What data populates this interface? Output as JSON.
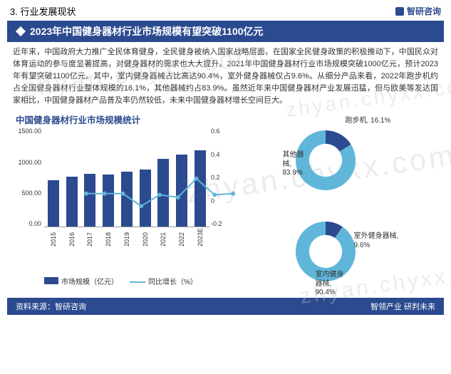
{
  "section_number": "3. 行业发展现状",
  "brand": "智研咨询",
  "title": "2023年中国健身器材行业市场规模有望突破1100亿元",
  "paragraph": "近年来，中国政府大力推广全民体育健身，全民健身被纳入国家战略层面，在国家全民健身政策的积极推动下，中国民众对体育运动的参与度显著提高，对健身器材的需求也大大提升。2021年中国健身器材行业市场规模突破1000亿元，预计2023年有望突破1100亿元。其中，室内健身器械占比高达90.4%，室外健身器械仅占9.6%。从细分产品来看，2022年跑步机约占全国健身器材行业整体规模的16.1%，其他器械约占83.9%。虽然近年来中国健身器材产业发展迅猛，但与欧美等发达国家相比，中国健身器材产品普及率仍然较低，未来中国健身器材增长空间巨大。",
  "bar_chart": {
    "type": "bar_line_combo",
    "title": "中国健身器材行业市场规模统计",
    "categories": [
      "2015",
      "2016",
      "2017",
      "2018",
      "2019",
      "2020",
      "2021",
      "2022",
      "2023E"
    ],
    "bar_values": [
      700,
      750,
      800,
      780,
      830,
      860,
      1020,
      1080,
      1150
    ],
    "bar_color": "#2b4a8f",
    "line_values": [
      0.07,
      0.07,
      0.07,
      -0.03,
      0.06,
      0.04,
      0.19,
      0.06,
      0.07
    ],
    "line_color": "#5fb6d9",
    "y_left_ticks": [
      "1500.00",
      "1000.00",
      "500.00",
      "0.00"
    ],
    "y_left_max": 1500,
    "y_right_ticks": [
      "0.6",
      "0.4",
      "0.2",
      "0",
      "-0.2"
    ],
    "y_right_min": -0.2,
    "y_right_max": 0.6,
    "legend_bar": "市场规模（亿元）",
    "legend_line": "同比增长（%）",
    "background_color": "#ffffff"
  },
  "donut1": {
    "type": "donut",
    "slices": [
      {
        "label": "跑步机",
        "value": 16.1,
        "color": "#2b4a8f",
        "label_text": "跑步机, 16.1%"
      },
      {
        "label": "其他器械",
        "value": 83.9,
        "color": "#5fb6d9",
        "label_text": "其他器\n械,\n83.9%"
      }
    ],
    "inner_radius_pct": 55
  },
  "donut2": {
    "type": "donut",
    "slices": [
      {
        "label": "室外健身器械",
        "value": 9.6,
        "color": "#2b4a8f",
        "label_text": "室外健身器械,\n9.6%"
      },
      {
        "label": "室内健身器械",
        "value": 90.4,
        "color": "#5fb6d9",
        "label_text": "室内健身\n器械,\n90.4%"
      }
    ],
    "inner_radius_pct": 55
  },
  "source_left": "资料来源：智研咨询",
  "source_right": "智领产业  研判未来",
  "watermark_text": "zhyan.chyxx.com"
}
